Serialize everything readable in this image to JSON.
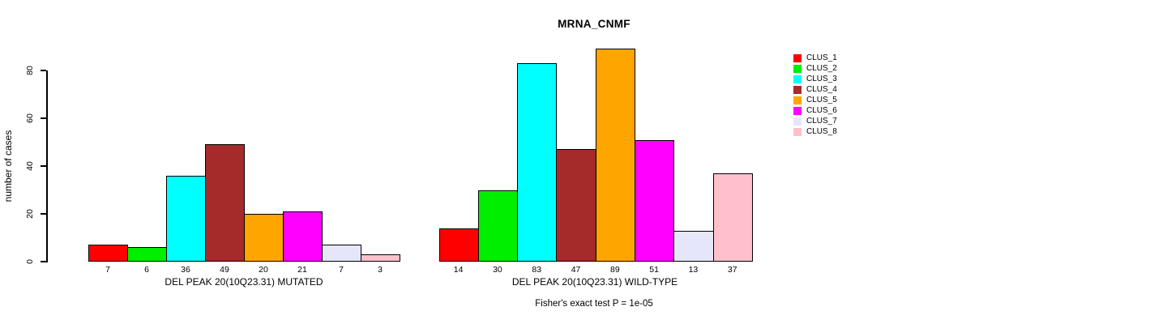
{
  "chart_data": {
    "type": "bar",
    "title": "MRNA_CNMF",
    "ylabel": "number of cases",
    "ylim": [
      0,
      80
    ],
    "yticks": [
      0,
      20,
      40,
      60,
      80
    ],
    "grid": false,
    "legend_position": "right",
    "categories": [
      "CLUS_1",
      "CLUS_2",
      "CLUS_3",
      "CLUS_4",
      "CLUS_5",
      "CLUS_6",
      "CLUS_7",
      "CLUS_8"
    ],
    "series_colors": [
      "#FF0000",
      "#00EE00",
      "#00FFFF",
      "#A52A2A",
      "#FFA500",
      "#FF00FF",
      "#E6E6FA",
      "#FFC0CB"
    ],
    "panels": [
      {
        "key": "mutated",
        "xlabel": "DEL PEAK 20(10Q23.31) MUTATED",
        "values": [
          7,
          6,
          36,
          49,
          20,
          21,
          7,
          3
        ]
      },
      {
        "key": "wildtype",
        "xlabel": "DEL PEAK 20(10Q23.31) WILD-TYPE",
        "values": [
          14,
          30,
          83,
          47,
          89,
          51,
          13,
          37
        ]
      }
    ],
    "annotation": "Fisher's exact test P = 1e-05"
  },
  "legend": {
    "entries": [
      {
        "label": "CLUS_1",
        "color": "#FF0000"
      },
      {
        "label": "CLUS_2",
        "color": "#00EE00"
      },
      {
        "label": "CLUS_3",
        "color": "#00FFFF"
      },
      {
        "label": "CLUS_4",
        "color": "#A52A2A"
      },
      {
        "label": "CLUS_5",
        "color": "#FFA500"
      },
      {
        "label": "CLUS_6",
        "color": "#FF00FF"
      },
      {
        "label": "CLUS_7",
        "color": "#E6E6FA"
      },
      {
        "label": "CLUS_8",
        "color": "#FFC0CB"
      }
    ]
  }
}
